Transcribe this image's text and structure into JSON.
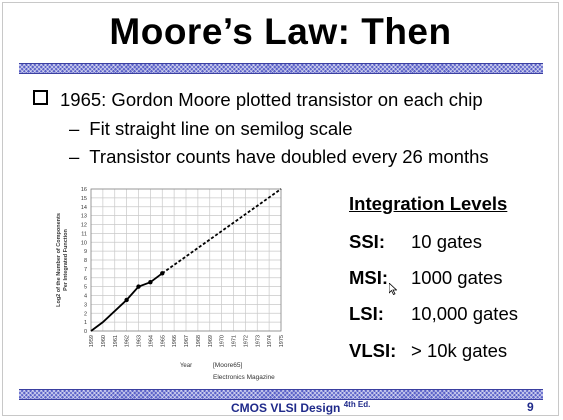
{
  "slide": {
    "title": "Moore’s Law: Then",
    "bullet": "1965: Gordon Moore plotted transistor on each chip",
    "subbullets": [
      "Fit straight line on semilog scale",
      "Transistor counts have doubled every 26 months"
    ],
    "dash": "–",
    "citation": "[Moore65]",
    "source": "Electronics Magazine"
  },
  "chart_data": {
    "type": "line",
    "ylabel": "Log2 of the Number of Components Per Integrated Function",
    "xlabel": "Year",
    "x": [
      "1959",
      "1960",
      "1961",
      "1962",
      "1963",
      "1964",
      "1965",
      "1966",
      "1967",
      "1968",
      "1969",
      "1970",
      "1971",
      "1972",
      "1973",
      "1974",
      "1975"
    ],
    "y_ticks": [
      0,
      1,
      2,
      3,
      4,
      5,
      6,
      7,
      8,
      9,
      10,
      11,
      12,
      13,
      14,
      15,
      16
    ],
    "ylim": [
      0,
      16
    ],
    "grid": true,
    "series": [
      {
        "style": "solid",
        "points": [
          [
            1959,
            0
          ],
          [
            1960,
            1
          ],
          [
            1962,
            3.5
          ],
          [
            1963,
            5
          ],
          [
            1964,
            5.5
          ],
          [
            1965,
            6.5
          ]
        ],
        "markers": [
          [
            1962,
            3.5
          ],
          [
            1963,
            5
          ],
          [
            1964,
            5.5
          ],
          [
            1965,
            6.5
          ]
        ]
      },
      {
        "style": "dashed",
        "points": [
          [
            1965,
            6.5
          ],
          [
            1975,
            16
          ]
        ]
      }
    ]
  },
  "levels": {
    "title": "Integration Levels",
    "rows": [
      {
        "abbr": "SSI:",
        "value": "10 gates"
      },
      {
        "abbr": "MSI:",
        "value": "1000 gates"
      },
      {
        "abbr": "LSI:",
        "value": "10,000 gates"
      },
      {
        "abbr": "VLSI:",
        "value": "> 10k gates"
      }
    ]
  },
  "footer": {
    "title": "CMOS VLSI Design",
    "edition": "4th Ed.",
    "page": "9"
  },
  "colors": {
    "band": "#5b62c8",
    "footer_text": "#1f2a8a"
  }
}
